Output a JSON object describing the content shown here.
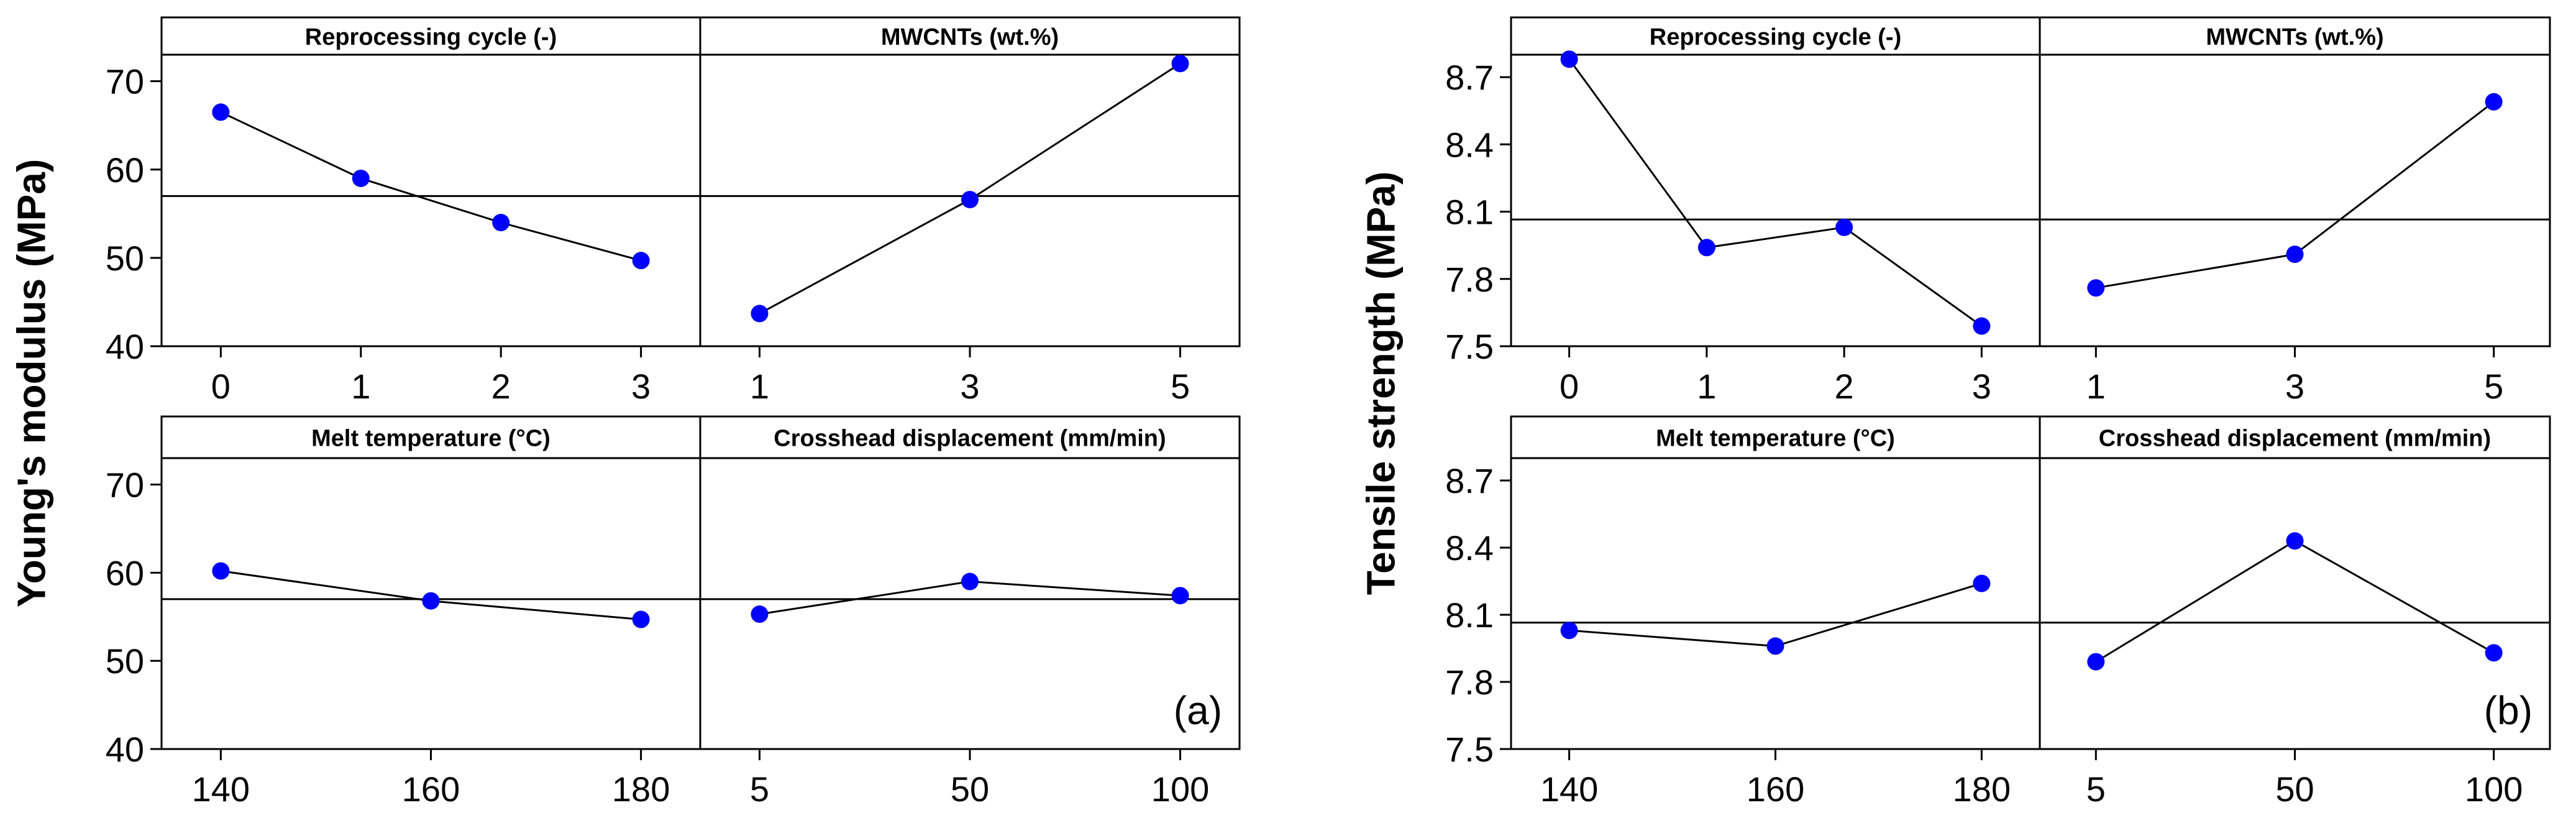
{
  "chart_data": [
    {
      "type": "line",
      "figure_label": "(a)",
      "ylabel": "Young's modulus (MPa)",
      "ylim": [
        40,
        73
      ],
      "yticks": [
        40,
        50,
        60,
        70
      ],
      "ytick_labels": [
        "40",
        "50",
        "60",
        "70"
      ],
      "mean_line": 57,
      "colors": {
        "marker": "#0000ff",
        "line": "#000000"
      },
      "panels": [
        {
          "title": "Reprocessing cycle (-)",
          "categories": [
            "0",
            "1",
            "2",
            "3"
          ],
          "values": [
            66.5,
            59,
            54,
            49.7
          ]
        },
        {
          "title": "MWCNTs (wt.%)",
          "categories": [
            "1",
            "3",
            "5"
          ],
          "values": [
            43.7,
            56.6,
            72
          ]
        },
        {
          "title": "Melt temperature (°C)",
          "categories": [
            "140",
            "160",
            "180"
          ],
          "values": [
            60.2,
            56.8,
            54.7
          ]
        },
        {
          "title": "Crosshead displacement (mm/min)",
          "categories": [
            "5",
            "50",
            "100"
          ],
          "values": [
            55.3,
            59,
            57.4
          ]
        }
      ]
    },
    {
      "type": "line",
      "figure_label": "(b)",
      "ylabel": "Tensile strength (MPa)",
      "ylim": [
        7.5,
        8.8
      ],
      "yticks": [
        7.5,
        7.8,
        8.1,
        8.4,
        8.7
      ],
      "ytick_labels": [
        "7.5",
        "7.8",
        "8.1",
        "8.4",
        "8.7"
      ],
      "mean_line": 8.065,
      "colors": {
        "marker": "#0000ff",
        "line": "#000000"
      },
      "panels": [
        {
          "title": "Reprocessing cycle (-)",
          "categories": [
            "0",
            "1",
            "2",
            "3"
          ],
          "values": [
            8.78,
            7.94,
            8.03,
            7.59
          ]
        },
        {
          "title": "MWCNTs (wt.%)",
          "categories": [
            "1",
            "3",
            "5"
          ],
          "values": [
            7.76,
            7.91,
            8.59
          ]
        },
        {
          "title": "Melt temperature (°C)",
          "categories": [
            "140",
            "160",
            "180"
          ],
          "values": [
            8.03,
            7.96,
            8.24
          ]
        },
        {
          "title": "Crosshead displacement (mm/min)",
          "categories": [
            "5",
            "50",
            "100"
          ],
          "values": [
            7.89,
            8.43,
            7.93
          ]
        }
      ]
    }
  ]
}
